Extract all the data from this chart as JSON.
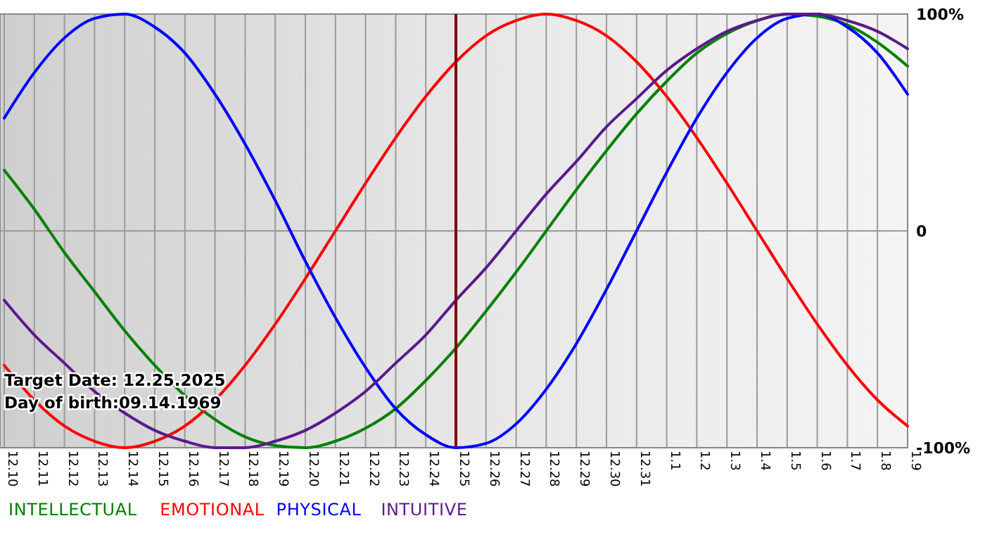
{
  "chart_data": {
    "type": "line",
    "categories": [
      "12.10",
      "12.11",
      "12.12",
      "12.13",
      "12.14",
      "12.15",
      "12.16",
      "12.17",
      "12.18",
      "12.19",
      "12.20",
      "12.21",
      "12.22",
      "12.23",
      "12.24",
      "12.25",
      "12.26",
      "12.27",
      "12.28",
      "12.29",
      "12.30",
      "12.31",
      "1.1",
      "1.2",
      "1.3",
      "1.4",
      "1.5",
      "1.6",
      "1.7",
      "1.8",
      "1.9"
    ],
    "series": [
      {
        "name": "INTELLECTUAL",
        "color": "#008000",
        "values": [
          28,
          10,
          -10,
          -28,
          -46,
          -62,
          -76,
          -87,
          -95,
          -99,
          -100,
          -97,
          -91,
          -82,
          -69,
          -54,
          -37,
          -19,
          0,
          19,
          37,
          54,
          69,
          82,
          91,
          97,
          100,
          99,
          95,
          87,
          76
        ]
      },
      {
        "name": "EMOTIONAL",
        "color": "#ff0000",
        "values": [
          -62,
          -78,
          -90,
          -97,
          -100,
          -97,
          -90,
          -78,
          -62,
          -43,
          -22,
          0,
          22,
          43,
          62,
          78,
          90,
          97,
          100,
          97,
          90,
          78,
          62,
          43,
          22,
          0,
          -22,
          -43,
          -62,
          -78,
          -90
        ]
      },
      {
        "name": "PHYSICAL",
        "color": "#0000ff",
        "values": [
          52,
          73,
          89,
          98,
          100,
          94,
          82,
          63,
          40,
          14,
          -14,
          -40,
          -63,
          -82,
          -94,
          -100,
          -98,
          -89,
          -73,
          -52,
          -27,
          0,
          27,
          52,
          73,
          89,
          98,
          100,
          94,
          82,
          63
        ]
      },
      {
        "name": "INTUITIVE",
        "color": "#5a1a8c",
        "values": [
          -32,
          -48,
          -61,
          -74,
          -84,
          -92,
          -97,
          -100,
          -100,
          -97,
          -92,
          -84,
          -74,
          -61,
          -48,
          -32,
          -17,
          0,
          17,
          32,
          48,
          61,
          74,
          84,
          92,
          97,
          100,
          100,
          97,
          92,
          84
        ]
      }
    ],
    "ylim": [
      -100,
      100
    ],
    "yticks": [
      {
        "value": 100,
        "label": "100%"
      },
      0,
      {
        "value": -100,
        "label": "-100%"
      }
    ],
    "grid": true,
    "legend": "bottom left",
    "marker": "none",
    "line_style": "solid",
    "ref_lines": [
      {
        "axis": "x",
        "value": "12.25",
        "color": "#800000"
      }
    ],
    "annotations": [
      "Target Date: 12.25.2025",
      "Day of birth:09.14.1969"
    ]
  }
}
